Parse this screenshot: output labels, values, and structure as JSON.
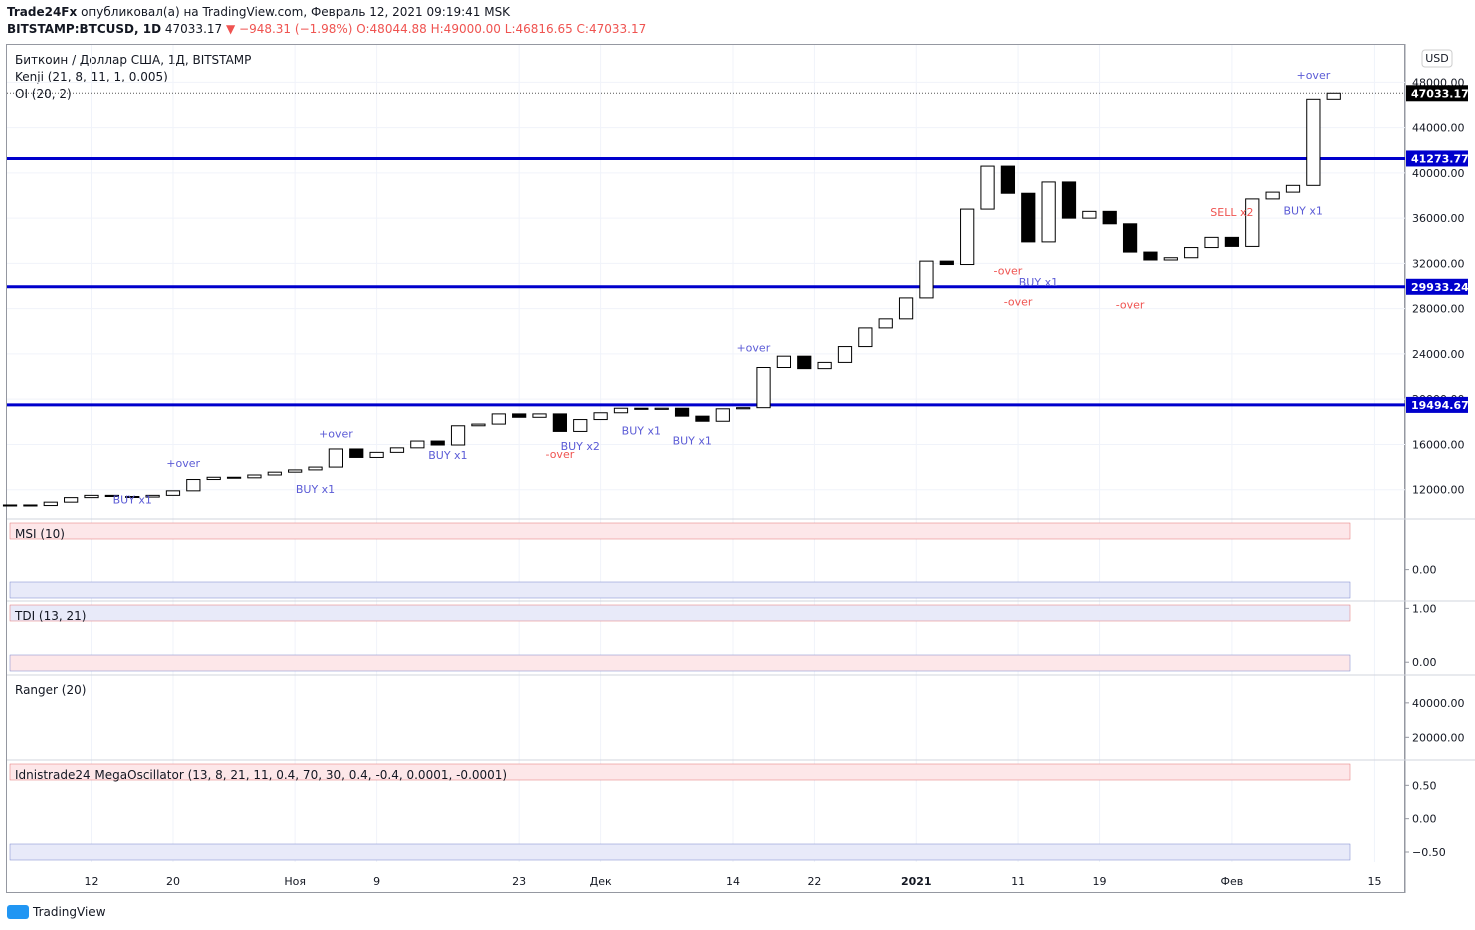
{
  "header": {
    "publisher": "Trade24Fx",
    "published": "опубликовал(а) на TradingView.com, Февраль 12, 2021 09:19:41 MSK",
    "symbol": "BITSTAMP:BTCUSD, 1D",
    "last": "47033.17",
    "change": "▼ −948.31 (−1.98%)",
    "ohlc": "O:48044.88 H:49000.00 L:46816.65 C:47033.17"
  },
  "legend": [
    "Биткоин / Доллар США, 1Д, BITSTAMP",
    "Kenji (21, 8, 11, 1, 0.005)",
    "OI (20, 2)"
  ],
  "currency": "USD",
  "footer": "TradingView",
  "chart_data": {
    "type": "candlestick",
    "x": [
      0,
      2,
      4,
      6,
      8,
      10,
      12,
      14,
      16,
      18,
      20,
      22,
      24,
      26,
      28,
      30,
      32,
      34,
      36,
      38,
      40,
      42,
      44,
      46,
      48,
      50,
      52,
      54,
      56,
      58,
      60,
      62,
      64,
      66,
      68,
      70,
      72,
      74,
      76,
      78,
      80,
      82,
      84,
      86,
      88,
      90,
      92,
      94,
      96,
      98,
      100,
      102,
      104,
      106,
      108,
      110,
      112,
      114,
      116,
      118,
      120,
      122,
      124,
      126,
      128,
      130
    ],
    "values": [
      10650,
      10600,
      10900,
      11300,
      11500,
      11400,
      11350,
      11500,
      11900,
      12900,
      13100,
      13050,
      13300,
      13550,
      13750,
      14000,
      15600,
      14850,
      15300,
      15700,
      16300,
      15950,
      17650,
      17800,
      18700,
      18400,
      18700,
      17150,
      18200,
      18800,
      19200,
      19100,
      19200,
      18500,
      18050,
      19150,
      19250,
      22800,
      23800,
      22700,
      23250,
      24650,
      26300,
      27100,
      28950,
      32200,
      31900,
      36800,
      40600,
      38200,
      33900,
      39200,
      36000,
      36600,
      35500,
      33000,
      32300,
      32500,
      33400,
      34300,
      33500,
      37700,
      38300,
      38900,
      46500,
      47033.17
    ],
    "xlim": [
      -0.3,
      137
    ],
    "ylim": [
      9500,
      51300
    ],
    "xticks": [
      {
        "value": 8,
        "label": "12"
      },
      {
        "value": 16,
        "label": "20"
      },
      {
        "value": 28,
        "label": "Ноя"
      },
      {
        "value": 36,
        "label": "9"
      },
      {
        "value": 50,
        "label": "23"
      },
      {
        "value": 58,
        "label": "Дек"
      },
      {
        "value": 71,
        "label": "14"
      },
      {
        "value": 79,
        "label": "22"
      },
      {
        "value": 89,
        "label": "2021"
      },
      {
        "value": 99,
        "label": "11"
      },
      {
        "value": 107,
        "label": "19"
      },
      {
        "value": 120,
        "label": "Фев"
      },
      {
        "value": 134,
        "label": "15"
      }
    ],
    "yticks": [
      {
        "value": 12000,
        "label": "12000.00"
      },
      {
        "value": 16000,
        "label": "16000.00"
      },
      {
        "value": 20000,
        "label": "20000.00"
      },
      {
        "value": 24000,
        "label": "24000.00"
      },
      {
        "value": 28000,
        "label": "28000.00"
      },
      {
        "value": 32000,
        "label": "32000.00"
      },
      {
        "value": 36000,
        "label": "36000.00"
      },
      {
        "value": 40000,
        "label": "40000.00"
      },
      {
        "value": 44000,
        "label": "44000.00"
      },
      {
        "value": 48000,
        "label": "48000.00"
      }
    ],
    "levels": [
      {
        "value": 41273.77,
        "label": "41273.77"
      },
      {
        "value": 29933.24,
        "label": "29933.24"
      },
      {
        "value": 19494.67,
        "label": "19494.67"
      }
    ],
    "last_price": {
      "value": 47033.17,
      "label": "47033.17"
    },
    "annotations": [
      {
        "text": "BUY x1",
        "x": 12,
        "y": 10800
      },
      {
        "text": "+over",
        "x": 17,
        "y": 14000
      },
      {
        "text": "BUY x1",
        "x": 30,
        "y": 11700
      },
      {
        "text": "+over",
        "x": 32,
        "y": 16600
      },
      {
        "text": "BUY x1",
        "x": 43,
        "y": 14700
      },
      {
        "text": "-over",
        "x": 54,
        "y": 14800
      },
      {
        "text": "BUY x2",
        "x": 56,
        "y": 15500
      },
      {
        "text": "BUY x1",
        "x": 62,
        "y": 16900
      },
      {
        "text": "BUY x1",
        "x": 67,
        "y": 16000
      },
      {
        "text": "+over",
        "x": 73,
        "y": 24200
      },
      {
        "text": "-over",
        "x": 98,
        "y": 31000
      },
      {
        "text": "BUY x1",
        "x": 101,
        "y": 30000
      },
      {
        "text": "-over",
        "x": 99,
        "y": 28300
      },
      {
        "text": "-over",
        "x": 110,
        "y": 28000
      },
      {
        "text": "SELL x2",
        "x": 120,
        "y": 36200
      },
      {
        "text": "+over",
        "x": 128,
        "y": 48300
      },
      {
        "text": "BUY x1",
        "x": 127,
        "y": 36300
      }
    ]
  },
  "panels": [
    {
      "title": "MSI (10)",
      "ylim": [
        -0.5,
        0.8
      ],
      "yticks": [
        {
          "value": 0,
          "label": "0.00"
        }
      ]
    },
    {
      "title": "TDI (13, 21)",
      "ylim": [
        -0.2,
        1.1
      ],
      "yticks": [
        {
          "value": 1,
          "label": "1.00"
        },
        {
          "value": 0,
          "label": "0.00"
        }
      ]
    },
    {
      "title": "Ranger (20)",
      "ylim": [
        8000,
        55000
      ],
      "yticks": [
        {
          "value": 40000,
          "label": "40000.00"
        },
        {
          "value": 20000,
          "label": "20000.00"
        }
      ]
    },
    {
      "title": "Idnistrade24 MegaOscillator (13, 8, 21, 11, 0.4, 70, 30, 0.4, -0.4, 0.0001, -0.0001)",
      "ylim": [
        -0.65,
        0.85
      ],
      "yticks": [
        {
          "value": 0.5,
          "label": "0.50"
        },
        {
          "value": 0,
          "label": "0.00"
        },
        {
          "value": -0.5,
          "label": "−0.50"
        }
      ]
    }
  ]
}
